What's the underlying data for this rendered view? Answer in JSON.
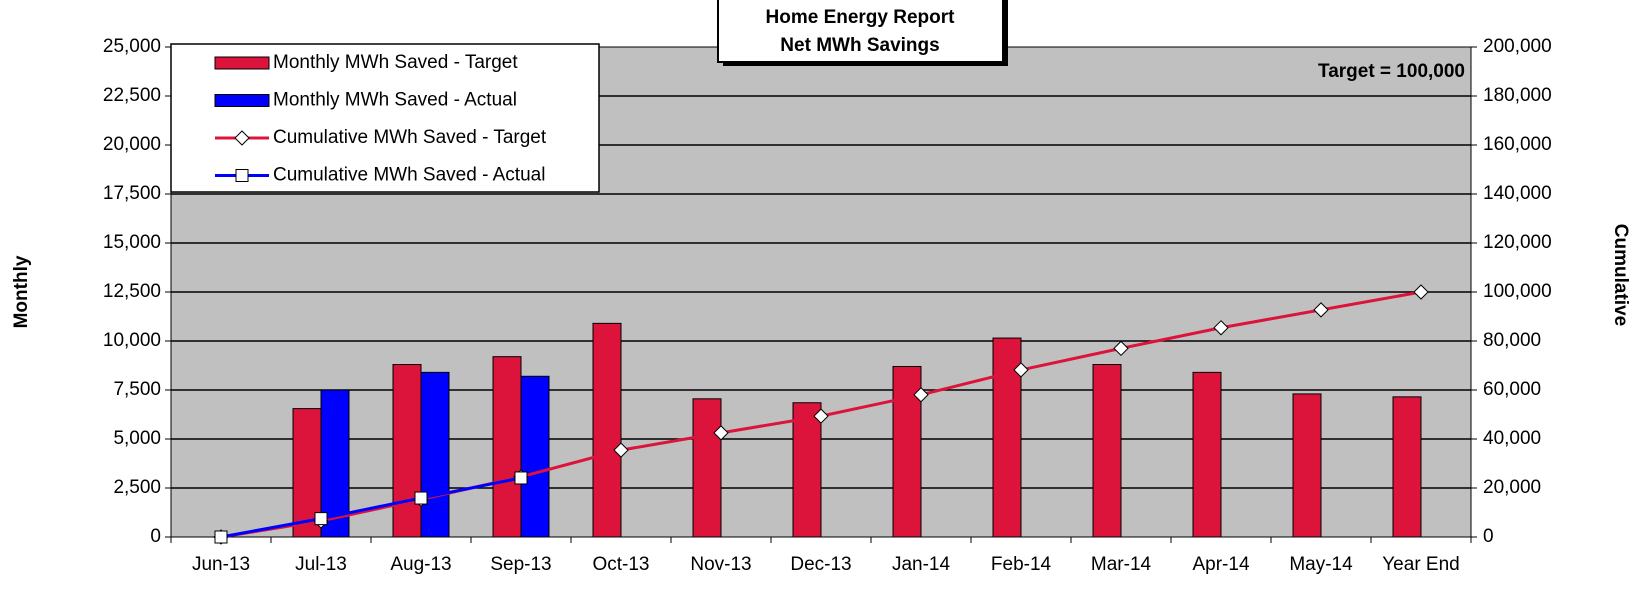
{
  "chart_data": {
    "type": "combo",
    "title": [
      "Home Energy Report",
      "Net MWh Savings"
    ],
    "annotation": "Target = 100,000",
    "ylabel": "Monthly",
    "y2label": "Cumulative",
    "categories": [
      "Jun-13",
      "Jul-13",
      "Aug-13",
      "Sep-13",
      "Oct-13",
      "Nov-13",
      "Dec-13",
      "Jan-14",
      "Feb-14",
      "Mar-14",
      "Apr-14",
      "May-14",
      "Year End"
    ],
    "series": [
      {
        "name": "Monthly MWh Saved - Target",
        "type": "bar",
        "color": "#dc143c",
        "values": [
          null,
          6550,
          8800,
          9200,
          10900,
          7050,
          6850,
          8700,
          10150,
          8800,
          8400,
          7300,
          7150
        ]
      },
      {
        "name": "Monthly MWh Saved - Actual",
        "type": "bar",
        "color": "#0000ff",
        "values": [
          null,
          7500,
          8400,
          8200,
          null,
          null,
          null,
          null,
          null,
          null,
          null,
          null,
          null
        ]
      },
      {
        "name": "Cumulative MWh Saved - Target",
        "type": "line",
        "marker": "diamond",
        "axis": "y2",
        "color": "#dc143c",
        "values": [
          0,
          6550,
          15350,
          24550,
          35450,
          42500,
          49350,
          58050,
          68200,
          77000,
          85400,
          92700,
          100000
        ]
      },
      {
        "name": "Cumulative MWh Saved - Actual",
        "type": "line",
        "marker": "square",
        "axis": "y2",
        "color": "#0000ff",
        "values": [
          0,
          7500,
          15900,
          24100,
          null,
          null,
          null,
          null,
          null,
          null,
          null,
          null,
          null
        ]
      }
    ],
    "ylim": [
      0,
      25000
    ],
    "yticks": [
      0,
      {
        "value": 2500,
        "label": "2,500"
      },
      {
        "value": 5000,
        "label": "5,000"
      },
      {
        "value": 7500,
        "label": "7,500"
      },
      {
        "value": 10000,
        "label": "10,000"
      },
      {
        "value": 12500,
        "label": "12,500"
      },
      {
        "value": 15000,
        "label": "15,000"
      },
      {
        "value": 17500,
        "label": "17,500"
      },
      {
        "value": 20000,
        "label": "20,000"
      },
      {
        "value": 22500,
        "label": "22,500"
      },
      {
        "value": 25000,
        "label": "25,000"
      }
    ],
    "y2lim": [
      0,
      200000
    ],
    "y2ticks": [
      0,
      {
        "value": 20000,
        "label": "20,000"
      },
      {
        "value": 40000,
        "label": "40,000"
      },
      {
        "value": 60000,
        "label": "60,000"
      },
      {
        "value": 80000,
        "label": "80,000"
      },
      {
        "value": 100000,
        "label": "100,000"
      },
      {
        "value": 120000,
        "label": "120,000"
      },
      {
        "value": 140000,
        "label": "140,000"
      },
      {
        "value": 160000,
        "label": "160,000"
      },
      {
        "value": 180000,
        "label": "180,000"
      },
      {
        "value": 200000,
        "label": "200,000"
      }
    ],
    "grid": true,
    "legend": "upper left"
  }
}
